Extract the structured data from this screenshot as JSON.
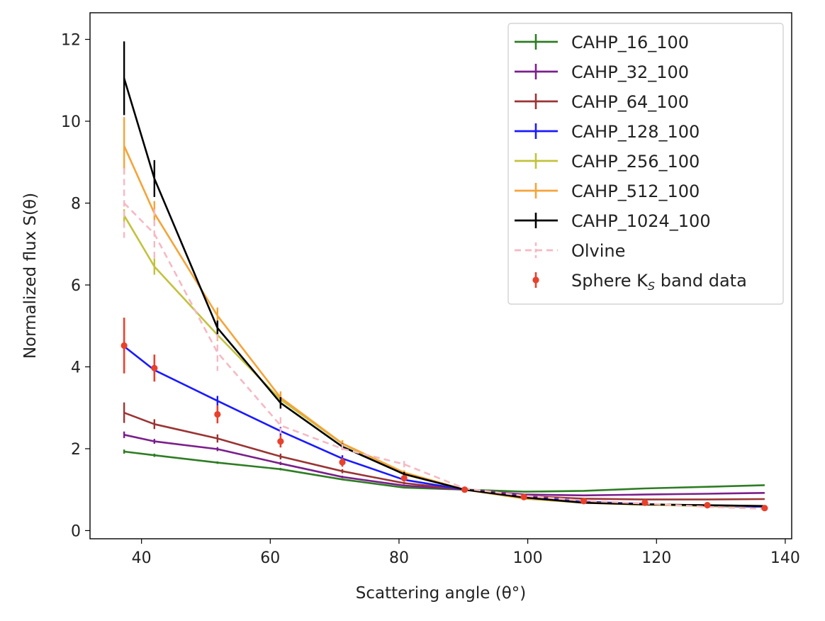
{
  "chart_data": {
    "type": "line",
    "title": "",
    "xlabel": "Scattering angle (θ°)",
    "ylabel": "Normalized flux S(θ)",
    "xlim": [
      32,
      141
    ],
    "ylim": [
      -0.2,
      12.65
    ],
    "xticks": [
      40,
      60,
      80,
      100,
      120,
      140
    ],
    "yticks": [
      0,
      2,
      4,
      6,
      8,
      10,
      12
    ],
    "grid": false,
    "legend_position": "top-right",
    "x": [
      37.3,
      42.0,
      51.8,
      61.6,
      71.2,
      80.8,
      90.2,
      99.4,
      108.7,
      118.2,
      127.9,
      136.8
    ],
    "series": [
      {
        "name": "CAHP_16_100",
        "color": "#2e7d23",
        "dashed": false,
        "values": [
          1.93,
          1.84,
          1.66,
          1.5,
          1.25,
          1.05,
          1.0,
          0.95,
          0.97,
          1.03,
          1.07,
          1.11
        ],
        "errors": [
          0.05,
          0.04,
          0.03,
          0.03,
          0.02,
          0.02,
          0.0,
          0.0,
          0.0,
          0.0,
          0.0,
          0.0
        ]
      },
      {
        "name": "CAHP_32_100",
        "color": "#7b1f8c",
        "dashed": false,
        "values": [
          2.34,
          2.18,
          1.99,
          1.64,
          1.31,
          1.1,
          1.0,
          0.88,
          0.86,
          0.88,
          0.9,
          0.92
        ],
        "errors": [
          0.08,
          0.06,
          0.05,
          0.04,
          0.03,
          0.02,
          0.0,
          0.0,
          0.0,
          0.0,
          0.0,
          0.0
        ]
      },
      {
        "name": "CAHP_64_100",
        "color": "#9b3434",
        "dashed": false,
        "values": [
          2.88,
          2.6,
          2.25,
          1.81,
          1.45,
          1.16,
          1.0,
          0.84,
          0.78,
          0.76,
          0.76,
          0.77
        ],
        "errors": [
          0.25,
          0.12,
          0.1,
          0.07,
          0.05,
          0.03,
          0.0,
          0.0,
          0.0,
          0.0,
          0.0,
          0.0
        ]
      },
      {
        "name": "CAHP_128_100",
        "color": "#1a1aff",
        "dashed": false,
        "values": [
          4.5,
          3.92,
          3.17,
          2.43,
          1.76,
          1.24,
          1.0,
          0.82,
          0.71,
          0.65,
          0.6,
          0.58
        ],
        "errors": [
          0.12,
          0.1,
          0.12,
          0.1,
          0.08,
          0.04,
          0.0,
          0.0,
          0.0,
          0.0,
          0.0,
          0.0
        ]
      },
      {
        "name": "CAHP_256_100",
        "color": "#c2c23e",
        "dashed": false,
        "values": [
          7.7,
          6.45,
          4.78,
          3.2,
          2.12,
          1.37,
          1.0,
          0.78,
          0.68,
          0.63,
          0.6,
          0.6
        ],
        "errors": [
          0.15,
          0.2,
          0.15,
          0.12,
          0.08,
          0.05,
          0.0,
          0.0,
          0.0,
          0.0,
          0.0,
          0.0
        ]
      },
      {
        "name": "CAHP_512_100",
        "color": "#f4a43a",
        "dashed": false,
        "values": [
          9.4,
          7.75,
          5.25,
          3.25,
          2.13,
          1.42,
          1.0,
          0.79,
          0.69,
          0.64,
          0.62,
          0.6
        ],
        "errors": [
          0.7,
          0.3,
          0.2,
          0.15,
          0.08,
          0.05,
          0.0,
          0.0,
          0.0,
          0.0,
          0.0,
          0.0
        ]
      },
      {
        "name": "CAHP_1024_100",
        "color": "#000000",
        "dashed": false,
        "values": [
          11.05,
          8.6,
          4.95,
          3.12,
          2.05,
          1.38,
          1.0,
          0.81,
          0.68,
          0.64,
          0.62,
          0.6
        ],
        "errors": [
          0.9,
          0.45,
          0.18,
          0.14,
          0.08,
          0.05,
          0.0,
          0.0,
          0.0,
          0.0,
          0.0,
          0.0
        ]
      },
      {
        "name": "Olvine",
        "color": "#f5b9c3",
        "dashed": true,
        "values": [
          8.0,
          7.25,
          4.35,
          2.57,
          2.0,
          1.62,
          1.03,
          0.85,
          0.73,
          0.66,
          0.58,
          0.53
        ],
        "errors": [
          0.85,
          0.6,
          0.45,
          0.2,
          0.12,
          0.08,
          0.0,
          0.0,
          0.0,
          0.0,
          0.0,
          0.0
        ]
      }
    ],
    "data_points": {
      "name": "Sphere K_S band data",
      "legend_label_main": "Sphere K",
      "legend_label_sub": "S",
      "legend_label_tail": " band data",
      "color": "#e8412c",
      "x": [
        37.3,
        42.0,
        51.8,
        61.6,
        71.2,
        80.8,
        90.2,
        99.4,
        108.7,
        118.2,
        127.9,
        136.8
      ],
      "y": [
        4.52,
        3.97,
        2.84,
        2.18,
        1.67,
        1.28,
        1.0,
        0.82,
        0.72,
        0.68,
        0.62,
        0.55
      ],
      "errors": [
        0.68,
        0.33,
        0.22,
        0.15,
        0.11,
        0.07,
        0.03,
        0.04,
        0.04,
        0.04,
        0.04,
        0.04
      ]
    }
  }
}
